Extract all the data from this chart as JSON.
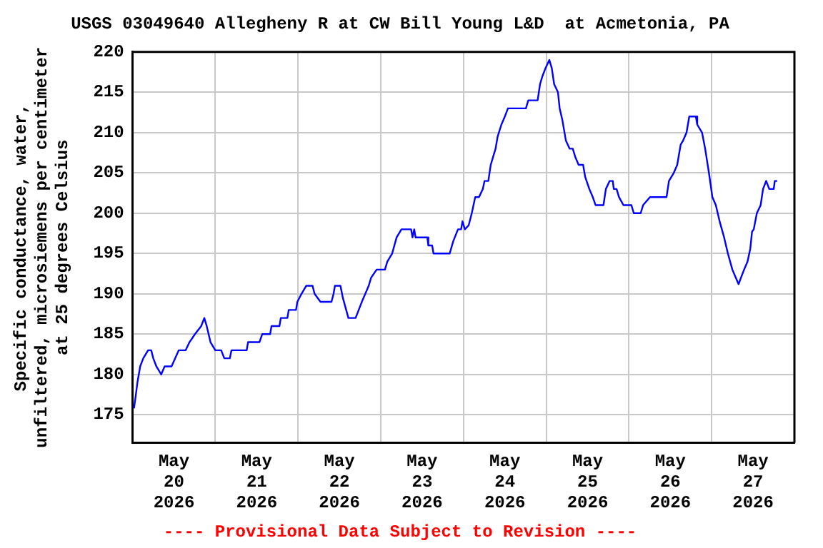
{
  "chart_data": {
    "type": "line",
    "title": "USGS 03049640 Allegheny R at CW Bill Young L&D  at Acmetonia, PA",
    "ylabel": "Specific conductance, water,\nunfiltered, microsiemens per centimeter\nat 25 degrees Celsius",
    "annotations": [
      "---- Provisional Data Subject to Revision ----"
    ],
    "grid": true,
    "legend": false,
    "xlim": [
      "2026-05-20T00:00",
      "2026-05-28T00:00"
    ],
    "xticks": [
      {
        "value": "2026-05-20T12:00",
        "label": "May 20 2026"
      },
      {
        "value": "2026-05-21T12:00",
        "label": "May 21 2026"
      },
      {
        "value": "2026-05-22T12:00",
        "label": "May 22 2026"
      },
      {
        "value": "2026-05-23T12:00",
        "label": "May 23 2026"
      },
      {
        "value": "2026-05-24T12:00",
        "label": "May 24 2026"
      },
      {
        "value": "2026-05-25T12:00",
        "label": "May 25 2026"
      },
      {
        "value": "2026-05-26T12:00",
        "label": "May 26 2026"
      },
      {
        "value": "2026-05-27T12:00",
        "label": "May 27 2026"
      },
      {
        "value": "2026-05-21T00:00",
        "label": null
      },
      {
        "value": "2026-05-22T00:00",
        "label": null
      },
      {
        "value": "2026-05-23T00:00",
        "label": null
      },
      {
        "value": "2026-05-24T00:00",
        "label": null
      },
      {
        "value": "2026-05-25T00:00",
        "label": null
      },
      {
        "value": "2026-05-26T00:00",
        "label": null
      },
      {
        "value": "2026-05-27T00:00",
        "label": null
      }
    ],
    "ylim": [
      171.5,
      220
    ],
    "yticks": [
      175,
      180,
      185,
      190,
      195,
      200,
      205,
      210,
      215,
      220
    ],
    "x": [
      "2026-05-20T00:24",
      "2026-05-20T00:48",
      "2026-05-20T01:24",
      "2026-05-20T02:12",
      "2026-05-20T03:06",
      "2026-05-20T04:30",
      "2026-05-20T05:24",
      "2026-05-20T06:00",
      "2026-05-20T06:54",
      "2026-05-20T08:18",
      "2026-05-20T09:18",
      "2026-05-20T11:18",
      "2026-05-20T13:24",
      "2026-05-20T15:24",
      "2026-05-20T16:30",
      "2026-05-20T18:06",
      "2026-05-20T19:54",
      "2026-05-20T20:48",
      "2026-05-20T21:30",
      "2026-05-20T22:36",
      "2026-05-21T00:00",
      "2026-05-21T01:42",
      "2026-05-21T02:36",
      "2026-05-21T04:12",
      "2026-05-21T04:42",
      "2026-05-21T09:06",
      "2026-05-21T09:30",
      "2026-05-21T12:48",
      "2026-05-21T13:36",
      "2026-05-21T15:54",
      "2026-05-21T16:18",
      "2026-05-21T18:36",
      "2026-05-21T19:00",
      "2026-05-21T20:54",
      "2026-05-21T21:18",
      "2026-05-21T23:24",
      "2026-05-21T23:48",
      "2026-05-22T01:00",
      "2026-05-22T02:24",
      "2026-05-22T04:12",
      "2026-05-22T04:48",
      "2026-05-22T06:30",
      "2026-05-22T09:42",
      "2026-05-22T10:18",
      "2026-05-22T10:42",
      "2026-05-22T12:18",
      "2026-05-22T13:00",
      "2026-05-22T14:36",
      "2026-05-22T16:42",
      "2026-05-22T18:30",
      "2026-05-22T20:30",
      "2026-05-22T21:12",
      "2026-05-22T22:48",
      "2026-05-23T01:12",
      "2026-05-23T01:54",
      "2026-05-23T03:18",
      "2026-05-23T04:36",
      "2026-05-23T06:00",
      "2026-05-23T08:48",
      "2026-05-23T09:12",
      "2026-05-23T09:42",
      "2026-05-23T10:06",
      "2026-05-23T13:30",
      "2026-05-23T13:48",
      "2026-05-23T14:54",
      "2026-05-23T15:18",
      "2026-05-23T20:00",
      "2026-05-23T21:00",
      "2026-05-23T22:24",
      "2026-05-23T23:18",
      "2026-05-23T23:42",
      "2026-05-24T00:24",
      "2026-05-24T01:30",
      "2026-05-24T02:24",
      "2026-05-24T03:24",
      "2026-05-24T04:30",
      "2026-05-24T05:36",
      "2026-05-24T06:06",
      "2026-05-24T07:12",
      "2026-05-24T07:54",
      "2026-05-24T08:36",
      "2026-05-24T09:18",
      "2026-05-24T09:54",
      "2026-05-24T11:00",
      "2026-05-24T12:00",
      "2026-05-24T12:54",
      "2026-05-24T18:06",
      "2026-05-24T18:48",
      "2026-05-24T21:30",
      "2026-05-24T22:12",
      "2026-05-24T22:54",
      "2026-05-24T23:48",
      "2026-05-25T00:54",
      "2026-05-25T01:36",
      "2026-05-25T02:18",
      "2026-05-25T03:24",
      "2026-05-25T03:54",
      "2026-05-25T04:42",
      "2026-05-25T05:42",
      "2026-05-25T06:48",
      "2026-05-25T07:42",
      "2026-05-25T08:24",
      "2026-05-25T09:24",
      "2026-05-25T10:42",
      "2026-05-25T11:18",
      "2026-05-25T12:30",
      "2026-05-25T13:30",
      "2026-05-25T14:18",
      "2026-05-25T16:36",
      "2026-05-25T17:18",
      "2026-05-25T18:24",
      "2026-05-25T19:18",
      "2026-05-25T19:36",
      "2026-05-25T20:24",
      "2026-05-25T21:06",
      "2026-05-25T22:24",
      "2026-05-26T00:42",
      "2026-05-26T01:24",
      "2026-05-26T03:24",
      "2026-05-26T04:06",
      "2026-05-26T06:06",
      "2026-05-26T10:54",
      "2026-05-26T11:36",
      "2026-05-26T13:00",
      "2026-05-26T14:00",
      "2026-05-26T15:00",
      "2026-05-26T15:42",
      "2026-05-26T16:42",
      "2026-05-26T17:30",
      "2026-05-26T19:24",
      "2026-05-26T19:48",
      "2026-05-26T21:12",
      "2026-05-26T22:06",
      "2026-05-26T23:12",
      "2026-05-27T00:12",
      "2026-05-27T01:12",
      "2026-05-27T02:18",
      "2026-05-27T03:36",
      "2026-05-27T04:42",
      "2026-05-27T06:00",
      "2026-05-27T07:00",
      "2026-05-27T07:48",
      "2026-05-27T08:30",
      "2026-05-27T09:24",
      "2026-05-27T10:24",
      "2026-05-27T11:12",
      "2026-05-27T11:42",
      "2026-05-27T12:12",
      "2026-05-27T13:06",
      "2026-05-27T14:12",
      "2026-05-27T14:54",
      "2026-05-27T15:48",
      "2026-05-27T16:42",
      "2026-05-27T18:00",
      "2026-05-27T18:18",
      "2026-05-27T19:00"
    ],
    "series": [
      {
        "color": "#0000ff",
        "values": [
          175.8,
          177,
          179,
          181,
          182,
          183,
          183,
          182,
          181,
          180,
          181,
          181,
          183,
          183,
          184,
          185,
          186,
          187,
          186,
          184,
          183,
          183,
          182,
          182,
          183,
          183,
          184,
          184,
          185,
          185,
          186,
          186,
          187,
          187,
          188,
          188,
          189,
          190,
          191,
          191,
          190,
          189,
          189,
          190,
          191,
          191,
          189.5,
          187,
          187,
          189,
          191,
          192,
          193,
          193,
          194,
          195,
          197,
          198,
          198,
          197,
          198,
          197,
          197,
          196,
          196,
          195,
          195,
          196.5,
          198,
          198,
          199,
          198,
          198.5,
          200,
          202,
          202,
          203,
          204,
          204,
          206,
          207,
          208,
          209.5,
          211,
          212,
          213,
          213,
          214,
          214,
          216,
          217,
          218,
          219,
          218,
          216,
          215,
          213,
          211.5,
          209,
          208,
          208,
          207,
          206,
          206,
          204.5,
          203,
          202,
          201,
          201,
          203,
          204,
          204,
          203,
          203,
          202,
          201,
          201,
          200,
          200,
          201,
          202,
          202,
          204,
          205,
          206,
          208.5,
          209,
          210,
          212,
          212,
          211,
          210,
          208,
          205,
          202,
          201,
          199,
          197,
          195,
          193,
          192,
          191.2,
          192,
          193,
          194,
          195.6,
          197.7,
          198,
          200,
          201,
          203,
          204,
          203,
          203,
          204,
          204
        ]
      }
    ]
  }
}
